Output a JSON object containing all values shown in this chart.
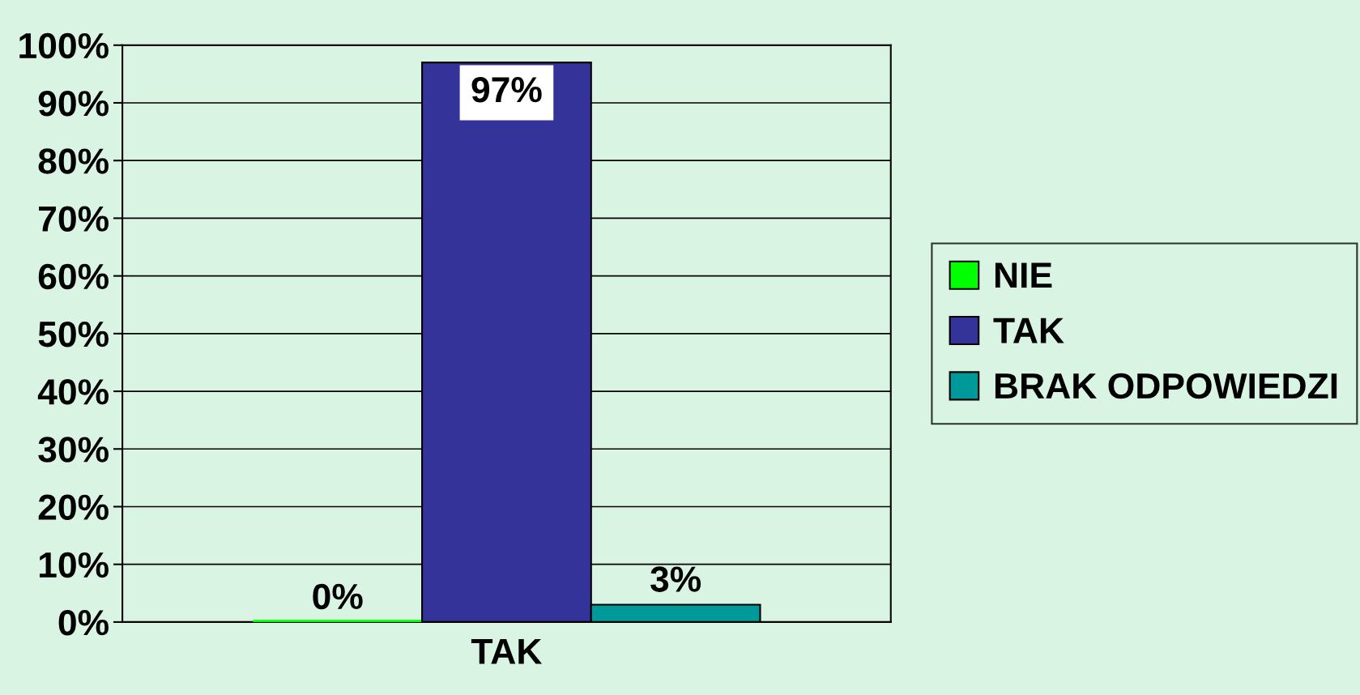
{
  "chart_data": {
    "type": "bar",
    "categories": [
      "TAK"
    ],
    "series": [
      {
        "name": "NIE",
        "color": "#00ff00",
        "values": [
          0
        ],
        "value_labels": [
          "0%"
        ]
      },
      {
        "name": "TAK",
        "color": "#333399",
        "values": [
          97
        ],
        "value_labels": [
          "97%"
        ]
      },
      {
        "name": "BRAK ODPOWIEDZI",
        "color": "#009999",
        "values": [
          3
        ],
        "value_labels": [
          "3%"
        ]
      }
    ],
    "ylim": [
      0,
      100
    ],
    "yticks": [
      {
        "value": 0,
        "label": "0%"
      },
      {
        "value": 10,
        "label": "10%"
      },
      {
        "value": 20,
        "label": "20%"
      },
      {
        "value": 30,
        "label": "30%"
      },
      {
        "value": 40,
        "label": "40%"
      },
      {
        "value": 50,
        "label": "50%"
      },
      {
        "value": 60,
        "label": "60%"
      },
      {
        "value": 70,
        "label": "70%"
      },
      {
        "value": 80,
        "label": "80%"
      },
      {
        "value": 90,
        "label": "90%"
      },
      {
        "value": 100,
        "label": "100%"
      }
    ],
    "grid": "y",
    "legend": "right"
  }
}
